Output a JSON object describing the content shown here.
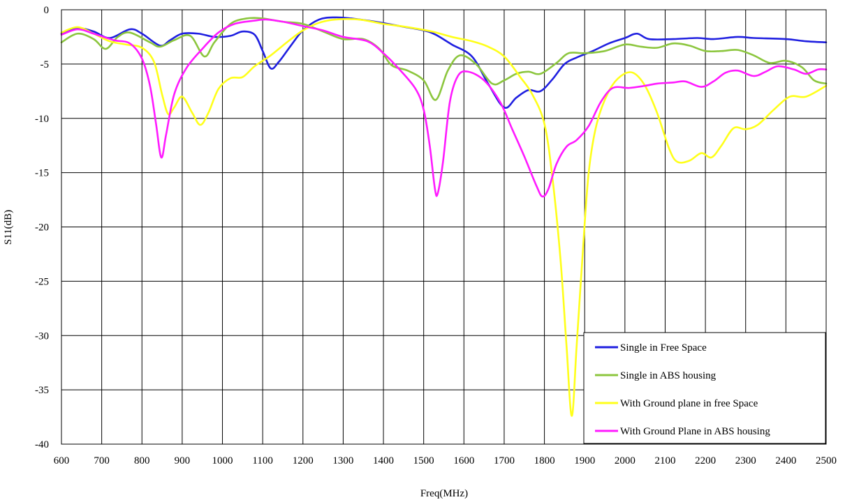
{
  "chart_data": {
    "type": "line",
    "title": "",
    "xlabel": "Freq(MHz)",
    "ylabel": "S11(dB)",
    "xlim": [
      600,
      2500
    ],
    "ylim": [
      -40,
      0
    ],
    "x_ticks": [
      600,
      700,
      800,
      900,
      1000,
      1100,
      1200,
      1300,
      1400,
      1500,
      1600,
      1700,
      1800,
      1900,
      2000,
      2100,
      2200,
      2300,
      2400,
      2500
    ],
    "y_ticks": [
      0,
      -5,
      -10,
      -15,
      -20,
      -25,
      -30,
      -35,
      -40
    ],
    "x_gridlines_every": 100,
    "grid": true,
    "legend_position": "bottom-right",
    "series": [
      {
        "name": "Single in Free Space",
        "color": "#1f1fe0",
        "points": [
          [
            600,
            -2.2
          ],
          [
            640,
            -1.7
          ],
          [
            680,
            -2.0
          ],
          [
            720,
            -2.6
          ],
          [
            770,
            -1.8
          ],
          [
            800,
            -2.2
          ],
          [
            845,
            -3.3
          ],
          [
            870,
            -2.8
          ],
          [
            900,
            -2.2
          ],
          [
            940,
            -2.2
          ],
          [
            980,
            -2.5
          ],
          [
            1020,
            -2.4
          ],
          [
            1050,
            -2.0
          ],
          [
            1080,
            -2.3
          ],
          [
            1100,
            -3.8
          ],
          [
            1120,
            -5.4
          ],
          [
            1140,
            -4.8
          ],
          [
            1170,
            -3.3
          ],
          [
            1200,
            -1.9
          ],
          [
            1240,
            -0.9
          ],
          [
            1280,
            -0.7
          ],
          [
            1320,
            -0.8
          ],
          [
            1380,
            -1.1
          ],
          [
            1440,
            -1.5
          ],
          [
            1500,
            -1.9
          ],
          [
            1530,
            -2.3
          ],
          [
            1570,
            -3.2
          ],
          [
            1620,
            -4.3
          ],
          [
            1660,
            -6.8
          ],
          [
            1700,
            -9.0
          ],
          [
            1730,
            -8.1
          ],
          [
            1760,
            -7.4
          ],
          [
            1790,
            -7.5
          ],
          [
            1820,
            -6.4
          ],
          [
            1850,
            -5.0
          ],
          [
            1880,
            -4.4
          ],
          [
            1920,
            -3.8
          ],
          [
            1960,
            -3.1
          ],
          [
            2000,
            -2.6
          ],
          [
            2030,
            -2.2
          ],
          [
            2060,
            -2.7
          ],
          [
            2120,
            -2.7
          ],
          [
            2180,
            -2.6
          ],
          [
            2220,
            -2.7
          ],
          [
            2280,
            -2.5
          ],
          [
            2320,
            -2.6
          ],
          [
            2400,
            -2.7
          ],
          [
            2450,
            -2.9
          ],
          [
            2500,
            -3.0
          ]
        ]
      },
      {
        "name": "Single in ABS housing",
        "color": "#8cc63e",
        "points": [
          [
            600,
            -3.0
          ],
          [
            640,
            -2.2
          ],
          [
            680,
            -2.7
          ],
          [
            710,
            -3.6
          ],
          [
            740,
            -2.5
          ],
          [
            770,
            -2.1
          ],
          [
            820,
            -3.0
          ],
          [
            845,
            -3.4
          ],
          [
            880,
            -2.8
          ],
          [
            920,
            -2.4
          ],
          [
            955,
            -4.3
          ],
          [
            980,
            -3.0
          ],
          [
            1020,
            -1.3
          ],
          [
            1060,
            -0.8
          ],
          [
            1100,
            -0.8
          ],
          [
            1150,
            -1.1
          ],
          [
            1200,
            -1.3
          ],
          [
            1250,
            -2.0
          ],
          [
            1300,
            -2.7
          ],
          [
            1350,
            -2.7
          ],
          [
            1390,
            -3.6
          ],
          [
            1420,
            -5.1
          ],
          [
            1460,
            -5.6
          ],
          [
            1500,
            -6.5
          ],
          [
            1530,
            -8.3
          ],
          [
            1560,
            -5.6
          ],
          [
            1590,
            -4.2
          ],
          [
            1630,
            -5.0
          ],
          [
            1670,
            -6.8
          ],
          [
            1700,
            -6.5
          ],
          [
            1730,
            -5.9
          ],
          [
            1760,
            -5.7
          ],
          [
            1790,
            -5.9
          ],
          [
            1830,
            -4.9
          ],
          [
            1860,
            -4.0
          ],
          [
            1900,
            -4.0
          ],
          [
            1950,
            -3.8
          ],
          [
            2000,
            -3.2
          ],
          [
            2040,
            -3.4
          ],
          [
            2080,
            -3.5
          ],
          [
            2120,
            -3.1
          ],
          [
            2160,
            -3.3
          ],
          [
            2200,
            -3.8
          ],
          [
            2240,
            -3.8
          ],
          [
            2280,
            -3.7
          ],
          [
            2320,
            -4.2
          ],
          [
            2360,
            -4.9
          ],
          [
            2400,
            -4.7
          ],
          [
            2440,
            -5.3
          ],
          [
            2470,
            -6.5
          ],
          [
            2500,
            -6.8
          ]
        ]
      },
      {
        "name": "With Ground plane in free Space",
        "color": "#ffff1a",
        "points": [
          [
            600,
            -2.1
          ],
          [
            640,
            -1.6
          ],
          [
            680,
            -2.2
          ],
          [
            720,
            -2.9
          ],
          [
            760,
            -3.2
          ],
          [
            800,
            -3.5
          ],
          [
            830,
            -4.8
          ],
          [
            850,
            -7.8
          ],
          [
            865,
            -9.6
          ],
          [
            880,
            -9.0
          ],
          [
            900,
            -8.0
          ],
          [
            925,
            -9.5
          ],
          [
            945,
            -10.6
          ],
          [
            965,
            -9.5
          ],
          [
            990,
            -7.3
          ],
          [
            1020,
            -6.3
          ],
          [
            1050,
            -6.2
          ],
          [
            1080,
            -5.2
          ],
          [
            1120,
            -4.2
          ],
          [
            1160,
            -3.0
          ],
          [
            1200,
            -1.9
          ],
          [
            1240,
            -1.2
          ],
          [
            1280,
            -0.9
          ],
          [
            1340,
            -0.9
          ],
          [
            1400,
            -1.3
          ],
          [
            1460,
            -1.6
          ],
          [
            1520,
            -2.0
          ],
          [
            1570,
            -2.5
          ],
          [
            1620,
            -2.9
          ],
          [
            1660,
            -3.4
          ],
          [
            1700,
            -4.3
          ],
          [
            1740,
            -6.2
          ],
          [
            1770,
            -7.8
          ],
          [
            1800,
            -10.5
          ],
          [
            1820,
            -15.5
          ],
          [
            1840,
            -23.0
          ],
          [
            1855,
            -31.0
          ],
          [
            1868,
            -37.4
          ],
          [
            1880,
            -31.0
          ],
          [
            1895,
            -22.5
          ],
          [
            1910,
            -15.0
          ],
          [
            1930,
            -10.5
          ],
          [
            1960,
            -7.5
          ],
          [
            1990,
            -6.1
          ],
          [
            2020,
            -5.8
          ],
          [
            2050,
            -7.0
          ],
          [
            2080,
            -9.5
          ],
          [
            2110,
            -12.8
          ],
          [
            2130,
            -14.0
          ],
          [
            2160,
            -13.9
          ],
          [
            2190,
            -13.2
          ],
          [
            2215,
            -13.6
          ],
          [
            2240,
            -12.5
          ],
          [
            2270,
            -10.9
          ],
          [
            2300,
            -11.0
          ],
          [
            2330,
            -10.6
          ],
          [
            2370,
            -9.2
          ],
          [
            2410,
            -8.0
          ],
          [
            2450,
            -8.0
          ],
          [
            2500,
            -7.0
          ]
        ]
      },
      {
        "name": "With Ground Plane in ABS housing",
        "color": "#ff1aff",
        "points": [
          [
            600,
            -2.3
          ],
          [
            640,
            -1.8
          ],
          [
            680,
            -2.2
          ],
          [
            730,
            -2.8
          ],
          [
            770,
            -3.1
          ],
          [
            800,
            -4.5
          ],
          [
            820,
            -7.0
          ],
          [
            835,
            -10.5
          ],
          [
            848,
            -13.6
          ],
          [
            860,
            -11.5
          ],
          [
            880,
            -7.8
          ],
          [
            910,
            -5.4
          ],
          [
            950,
            -3.6
          ],
          [
            990,
            -2.1
          ],
          [
            1030,
            -1.3
          ],
          [
            1080,
            -1.0
          ],
          [
            1110,
            -0.9
          ],
          [
            1150,
            -1.1
          ],
          [
            1200,
            -1.5
          ],
          [
            1250,
            -1.9
          ],
          [
            1300,
            -2.5
          ],
          [
            1360,
            -2.9
          ],
          [
            1400,
            -4.0
          ],
          [
            1440,
            -5.5
          ],
          [
            1480,
            -7.3
          ],
          [
            1500,
            -9.2
          ],
          [
            1515,
            -12.5
          ],
          [
            1528,
            -16.5
          ],
          [
            1535,
            -16.9
          ],
          [
            1548,
            -14.0
          ],
          [
            1565,
            -8.5
          ],
          [
            1585,
            -6.1
          ],
          [
            1610,
            -5.7
          ],
          [
            1650,
            -6.5
          ],
          [
            1690,
            -8.5
          ],
          [
            1720,
            -11.0
          ],
          [
            1750,
            -13.5
          ],
          [
            1780,
            -16.2
          ],
          [
            1795,
            -17.2
          ],
          [
            1810,
            -16.5
          ],
          [
            1830,
            -14.2
          ],
          [
            1855,
            -12.6
          ],
          [
            1880,
            -12.0
          ],
          [
            1910,
            -10.7
          ],
          [
            1940,
            -8.5
          ],
          [
            1970,
            -7.2
          ],
          [
            2010,
            -7.2
          ],
          [
            2050,
            -7.0
          ],
          [
            2080,
            -6.8
          ],
          [
            2120,
            -6.7
          ],
          [
            2150,
            -6.6
          ],
          [
            2190,
            -7.1
          ],
          [
            2220,
            -6.6
          ],
          [
            2250,
            -5.8
          ],
          [
            2280,
            -5.6
          ],
          [
            2320,
            -6.1
          ],
          [
            2350,
            -5.7
          ],
          [
            2380,
            -5.2
          ],
          [
            2420,
            -5.5
          ],
          [
            2450,
            -5.9
          ],
          [
            2480,
            -5.5
          ],
          [
            2500,
            -5.5
          ]
        ]
      }
    ]
  }
}
